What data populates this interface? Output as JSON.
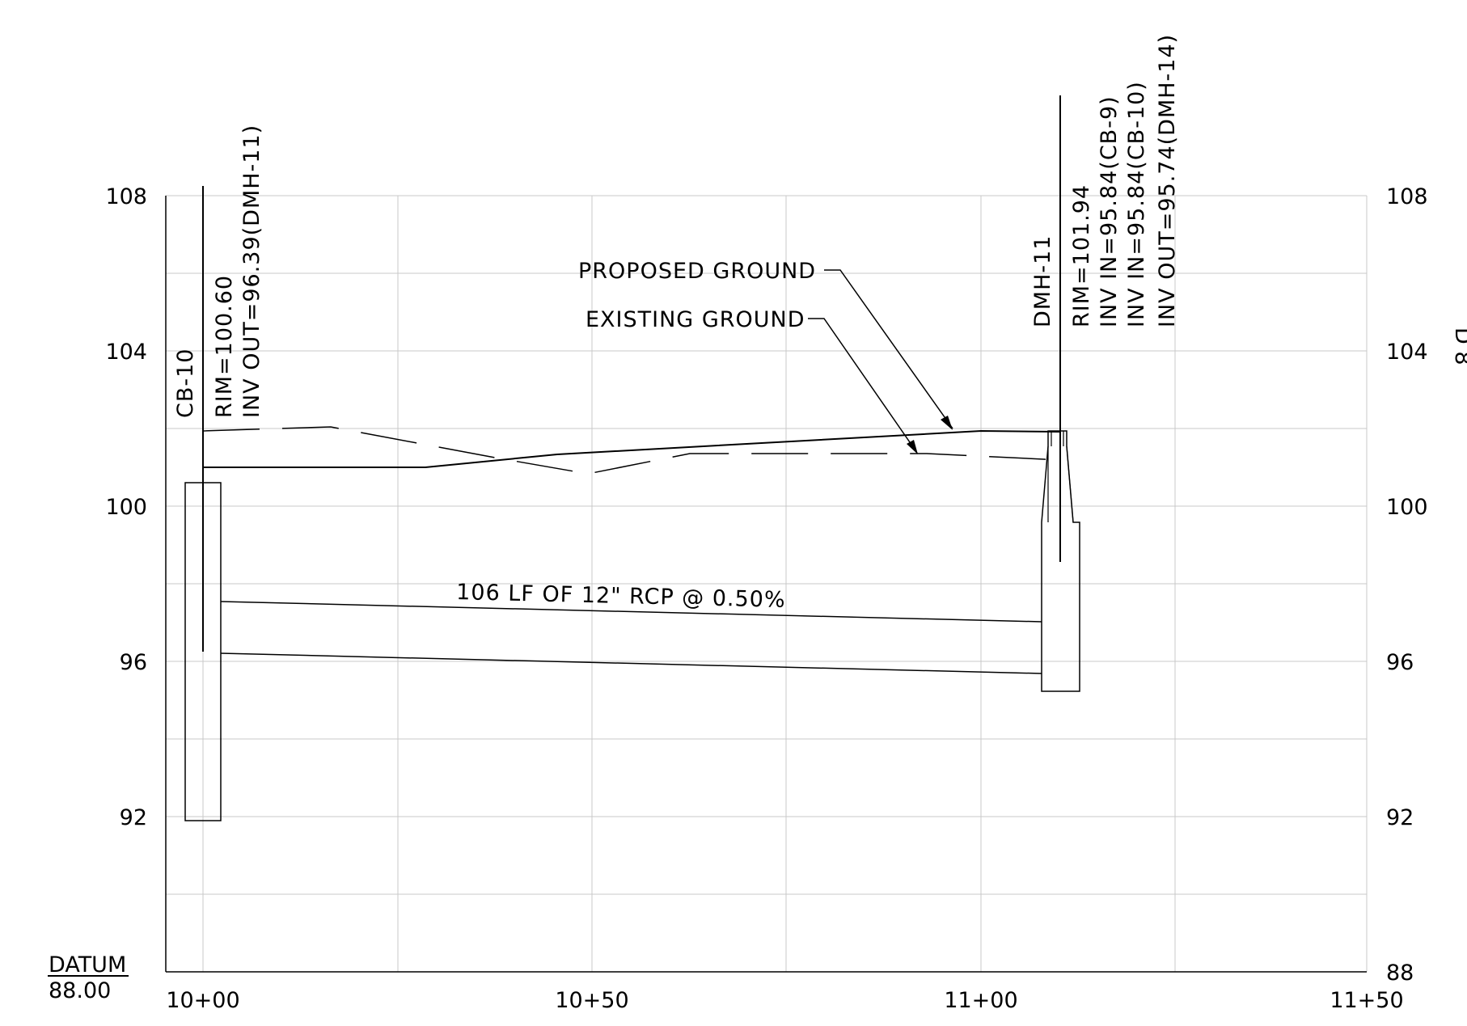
{
  "profile": {
    "datum_label": "DATUM",
    "datum_value": "88.00",
    "x_ticks": [
      "10+00",
      "10+50",
      "11+00",
      "11+50"
    ],
    "y_ticks_left": [
      "108",
      "104",
      "100",
      "96",
      "92"
    ],
    "y_ticks_right": [
      "108",
      "104",
      "100",
      "96",
      "92",
      "88"
    ],
    "right_edge_fragment": "D\n8",
    "ground_labels": {
      "proposed": "PROPOSED  GROUND",
      "existing": "EXISTING  GROUND"
    },
    "structures": {
      "cb10": {
        "name": "CB-10",
        "rim": "RIM=100.60",
        "inv_out": "INV  OUT=96.39(DMH-11)"
      },
      "dmh11": {
        "name": "DMH-11",
        "rim": "RIM=101.94",
        "inv_in_1": "INV  IN=95.84(CB-9)",
        "inv_in_2": "INV  IN=95.84(CB-10)",
        "inv_out": "INV  OUT=95.74(DMH-14)"
      }
    },
    "pipe_label": "106  LF  OF  12\"  RCP  @  0.50%",
    "colors": {
      "ink": "#000000",
      "grid": "#c8c8c8",
      "background": "#ffffff"
    }
  }
}
